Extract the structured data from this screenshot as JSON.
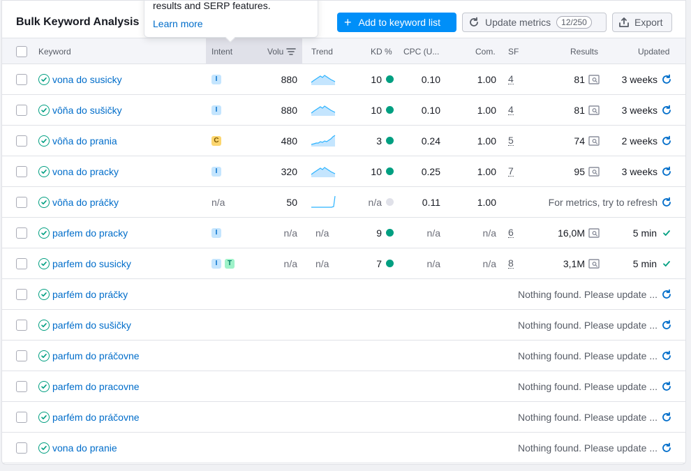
{
  "header": {
    "title": "Bulk Keyword Analysis",
    "add_button": "Add to keyword list",
    "update_button": "Update metrics",
    "update_counter": "12/250",
    "export_button": "Export"
  },
  "tooltip": {
    "text": "results and SERP features.",
    "link": "Learn more"
  },
  "columns": {
    "keyword": "Keyword",
    "intent": "Intent",
    "volume": "Volu",
    "trend": "Trend",
    "kd": "KD %",
    "cpc": "CPC (U...",
    "com": "Com.",
    "sf": "SF",
    "results": "Results",
    "updated": "Updated"
  },
  "colors": {
    "accent": "#008ff8",
    "link": "#006dca",
    "kd_green": "#009f81",
    "kd_na": "#e0e1e9"
  },
  "rows": [
    {
      "keyword": "vona do susicky",
      "intents": [
        "I"
      ],
      "volume": "880",
      "trend": "hill",
      "kd": "10",
      "kd_dot": "green",
      "cpc": "0.10",
      "com": "1.00",
      "sf": "4",
      "results": "81",
      "updated": "3 weeks",
      "updated_icon": "refresh"
    },
    {
      "keyword": "vôňa do sušičky",
      "intents": [
        "I"
      ],
      "volume": "880",
      "trend": "hill",
      "kd": "10",
      "kd_dot": "green",
      "cpc": "0.10",
      "com": "1.00",
      "sf": "4",
      "results": "81",
      "updated": "3 weeks",
      "updated_icon": "refresh"
    },
    {
      "keyword": "vôňa do prania",
      "intents": [
        "C"
      ],
      "volume": "480",
      "trend": "rise",
      "kd": "3",
      "kd_dot": "green",
      "cpc": "0.24",
      "com": "1.00",
      "sf": "5",
      "results": "74",
      "updated": "2 weeks",
      "updated_icon": "refresh"
    },
    {
      "keyword": "vona do pracky",
      "intents": [
        "I"
      ],
      "volume": "320",
      "trend": "hill",
      "kd": "10",
      "kd_dot": "green",
      "cpc": "0.25",
      "com": "1.00",
      "sf": "7",
      "results": "95",
      "updated": "3 weeks",
      "updated_icon": "refresh"
    },
    {
      "keyword": "vôňa do práčky",
      "intents_text": "n/a",
      "volume": "50",
      "trend": "spike",
      "kd": "n/a",
      "kd_dot": "na",
      "cpc": "0.11",
      "com": "1.00",
      "message": "For metrics, try to refresh",
      "updated_icon": "refresh"
    },
    {
      "keyword": "parfem do pracky",
      "intents": [
        "I"
      ],
      "volume": "n/a",
      "trend_text": "n/a",
      "kd": "9",
      "kd_dot": "green",
      "cpc": "n/a",
      "com": "n/a",
      "sf": "6",
      "results": "16,0M",
      "updated": "5 min",
      "updated_icon": "check"
    },
    {
      "keyword": "parfem do susicky",
      "intents": [
        "I",
        "T"
      ],
      "volume": "n/a",
      "trend_text": "n/a",
      "kd": "7",
      "kd_dot": "green",
      "cpc": "n/a",
      "com": "n/a",
      "sf": "8",
      "results": "3,1M",
      "updated": "5 min",
      "updated_icon": "check"
    },
    {
      "keyword": "parfém do práčky",
      "message": "Nothing found. Please update ...",
      "updated_icon": "refresh"
    },
    {
      "keyword": "parfém do sušičky",
      "message": "Nothing found. Please update ...",
      "updated_icon": "refresh"
    },
    {
      "keyword": "parfum do práčovne",
      "message": "Nothing found. Please update ...",
      "updated_icon": "refresh"
    },
    {
      "keyword": "parfem do pracovne",
      "message": "Nothing found. Please update ...",
      "updated_icon": "refresh"
    },
    {
      "keyword": "parfém do práčovne",
      "message": "Nothing found. Please update ...",
      "updated_icon": "refresh"
    },
    {
      "keyword": "vona do pranie",
      "message": "Nothing found. Please update ...",
      "updated_icon": "refresh"
    }
  ]
}
